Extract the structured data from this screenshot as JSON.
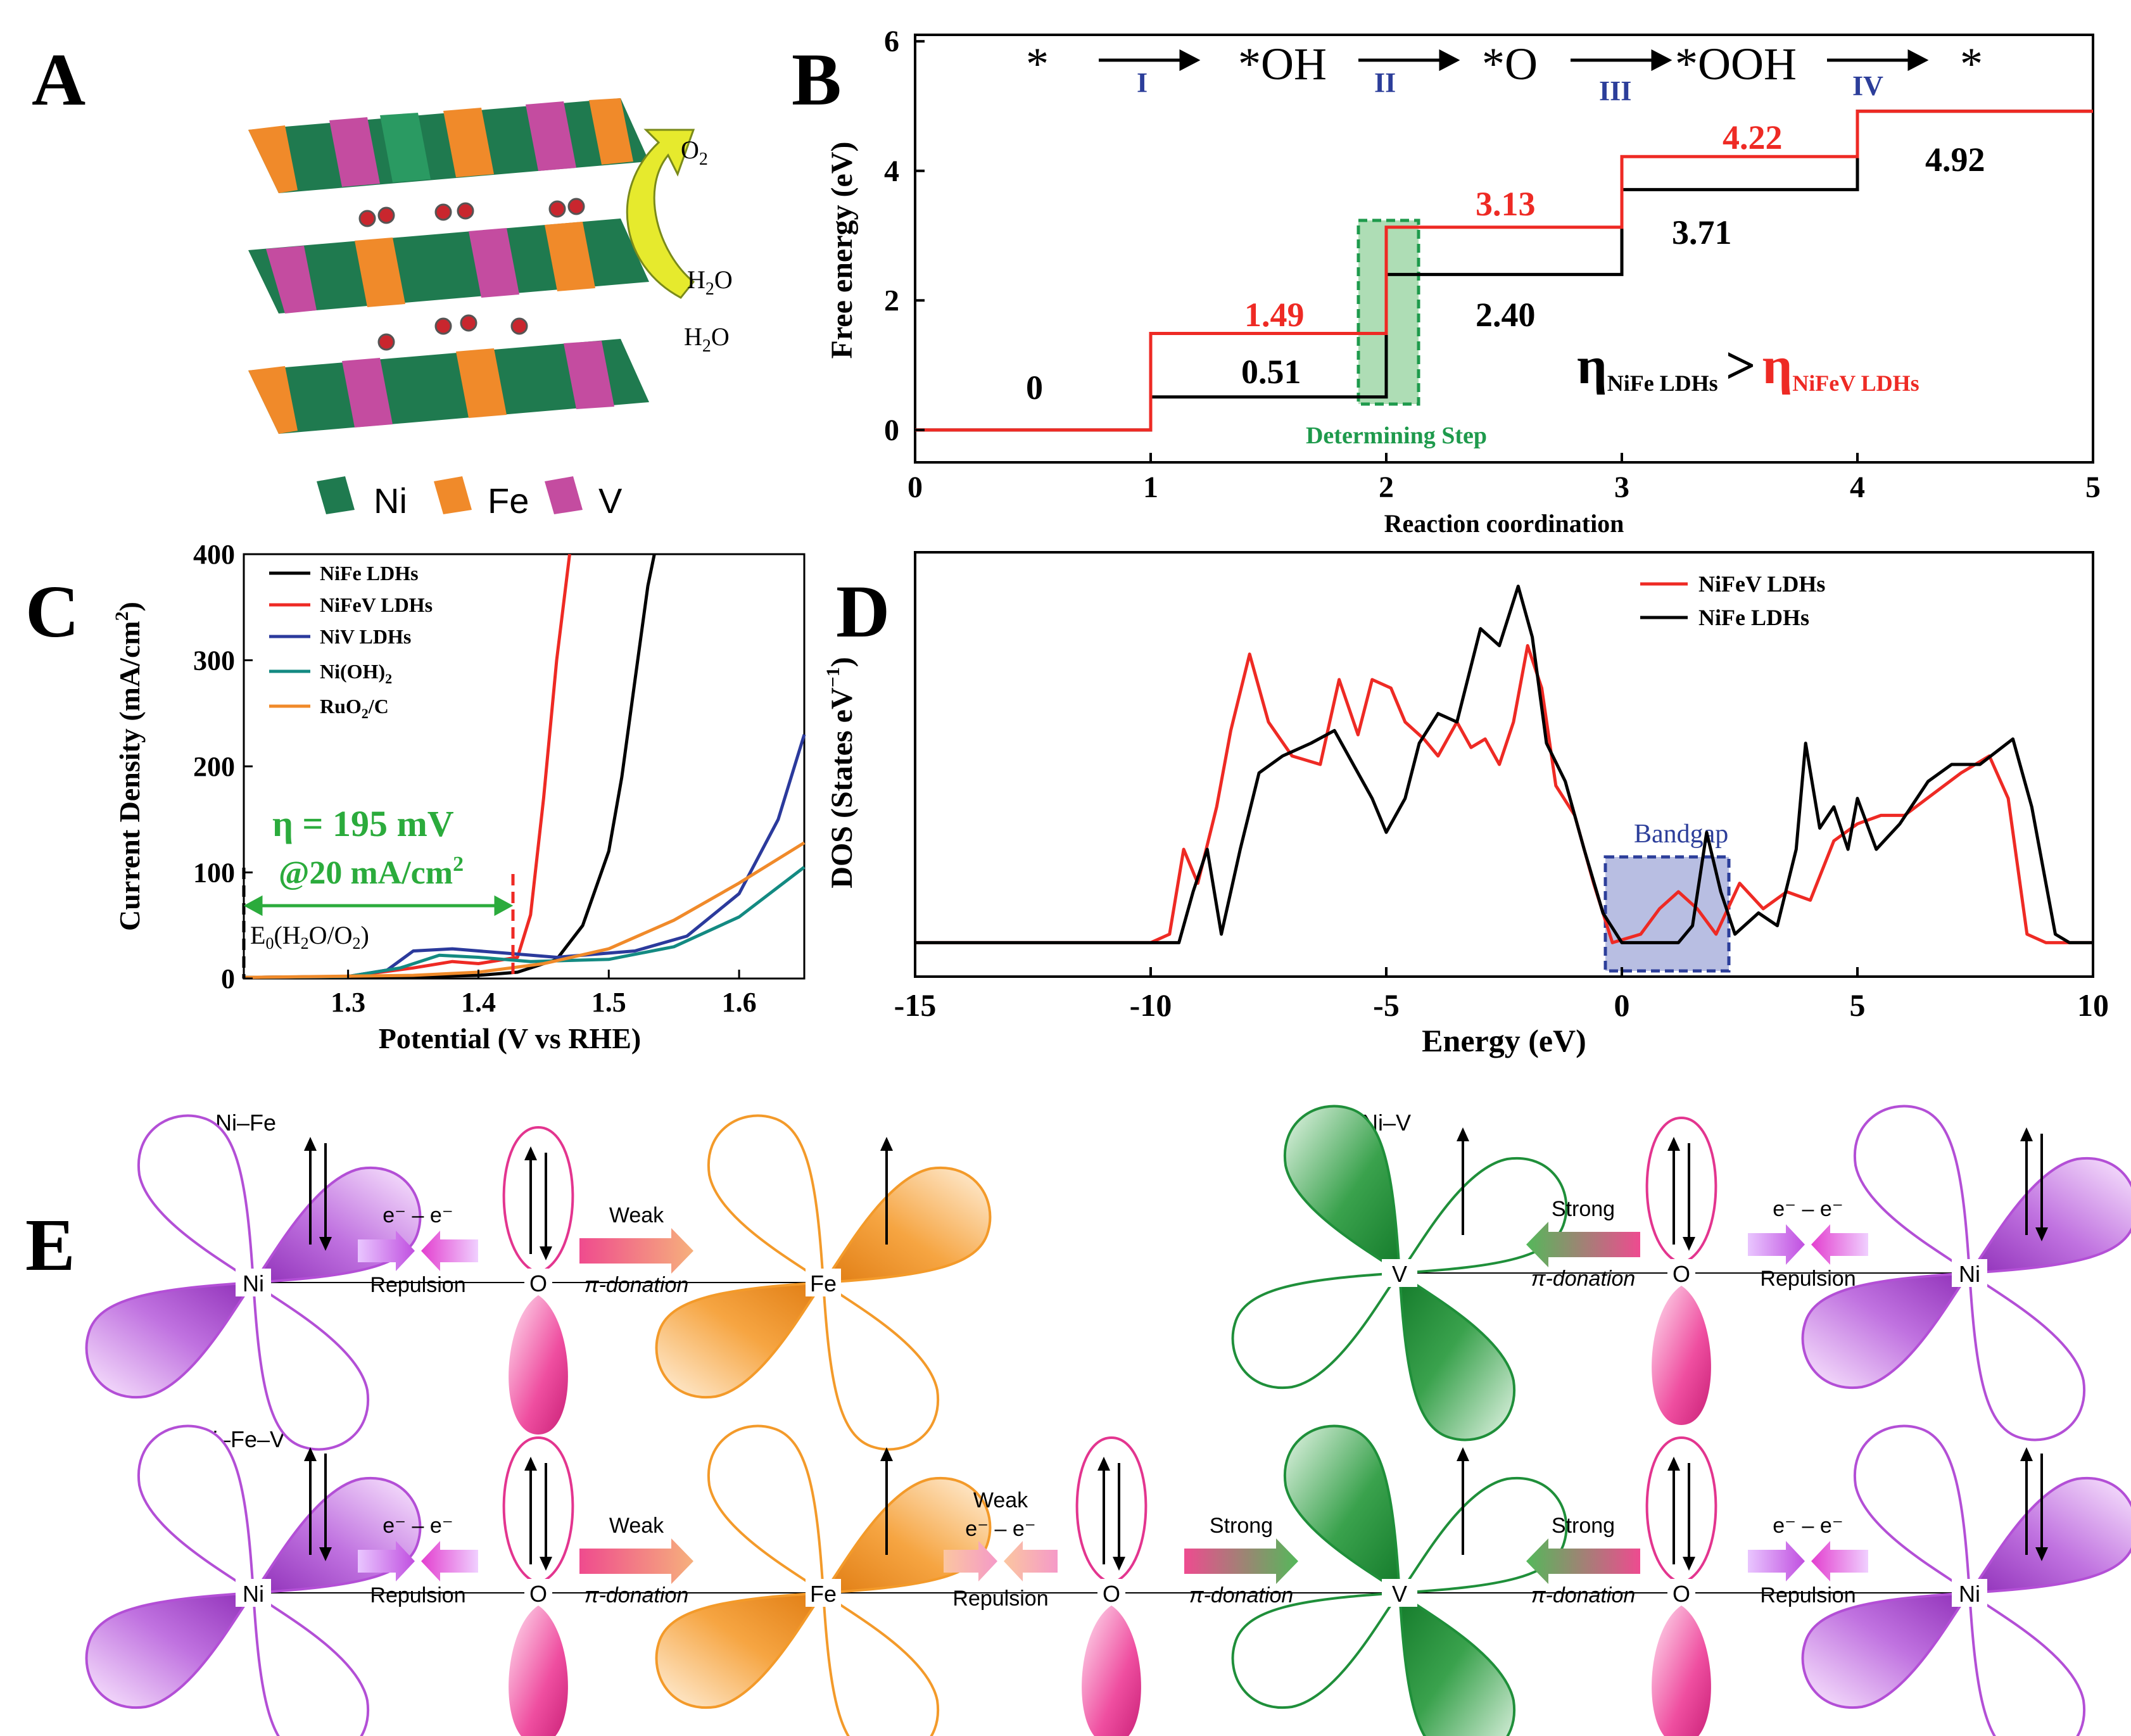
{
  "panel_labels": {
    "a": "A",
    "b": "B",
    "c": "C",
    "d": "D",
    "e": "E"
  },
  "panelA": {
    "o2": "O",
    "o2_sub": "2",
    "h2o_1": "H",
    "h2o_1_sub": "2",
    "h2o_1_tail": "O",
    "h2o_2": "H",
    "h2o_2_sub": "2",
    "h2o_2_tail": "O",
    "legend": [
      "Ni",
      "Fe",
      "V"
    ],
    "colors": {
      "ni": "#1f7a4f",
      "fe": "#f08a2a",
      "v": "#c44ca0"
    }
  },
  "chart_data": [
    {
      "id": "B",
      "type": "line",
      "xlabel": "Reaction coordination",
      "ylabel": "Free energy (eV)",
      "xlim": [
        0,
        5
      ],
      "ylim": [
        -0.5,
        6.1
      ],
      "xticks": [
        "0",
        "1",
        "2",
        "3",
        "4",
        "5"
      ],
      "yticks": [
        "0",
        "2",
        "4",
        "6"
      ],
      "series": [
        {
          "color": "#000000",
          "steps": [
            0,
            0.51,
            2.4,
            3.71,
            4.92
          ]
        },
        {
          "color": "#ee2a24",
          "steps": [
            0,
            1.49,
            3.13,
            4.22,
            4.92
          ]
        }
      ],
      "labels_black": [
        "0",
        "0.51",
        "2.40",
        "3.71",
        "4.92"
      ],
      "labels_red": [
        "1.49",
        "3.13",
        "4.22"
      ],
      "scheme": {
        "species": [
          "*",
          "*OH",
          "*O",
          "*OOH",
          "*"
        ],
        "steps": [
          "I",
          "II",
          "III",
          "IV"
        ]
      },
      "determining_step": "Determining Step",
      "eta": {
        "symbol": "η",
        "left_sub": "NiFe LDHs",
        "gt": ">",
        "right_sub": "NiFeV LDHs"
      }
    },
    {
      "id": "C",
      "type": "line",
      "xlabel": "Potential (V vs RHE)",
      "ylabel": "Current Density (mA/cm²)",
      "xlim": [
        1.22,
        1.65
      ],
      "ylim": [
        0,
        400
      ],
      "xticks": [
        "1.3",
        "1.4",
        "1.5",
        "1.6"
      ],
      "yticks": [
        "0",
        "100",
        "200",
        "300",
        "400"
      ],
      "series": [
        {
          "name": "NiFe LDHs",
          "color": "#000000",
          "points": [
            [
              1.22,
              1
            ],
            [
              1.3,
              1
            ],
            [
              1.36,
              2
            ],
            [
              1.4,
              3
            ],
            [
              1.43,
              6
            ],
            [
              1.46,
              18
            ],
            [
              1.48,
              50
            ],
            [
              1.5,
              120
            ],
            [
              1.51,
              190
            ],
            [
              1.52,
              280
            ],
            [
              1.53,
              370
            ],
            [
              1.535,
              400
            ]
          ]
        },
        {
          "name": "NiFeV LDHs",
          "color": "#ee2a24",
          "points": [
            [
              1.22,
              1
            ],
            [
              1.3,
              2
            ],
            [
              1.35,
              10
            ],
            [
              1.38,
              16
            ],
            [
              1.4,
              14
            ],
            [
              1.43,
              20
            ],
            [
              1.44,
              60
            ],
            [
              1.45,
              170
            ],
            [
              1.46,
              300
            ],
            [
              1.47,
              400
            ]
          ]
        },
        {
          "name": "NiV LDHs",
          "color": "#2b3a9c",
          "points": [
            [
              1.22,
              1
            ],
            [
              1.3,
              2
            ],
            [
              1.33,
              8
            ],
            [
              1.35,
              26
            ],
            [
              1.38,
              28
            ],
            [
              1.42,
              24
            ],
            [
              1.46,
              20
            ],
            [
              1.52,
              26
            ],
            [
              1.56,
              40
            ],
            [
              1.6,
              80
            ],
            [
              1.63,
              150
            ],
            [
              1.65,
              230
            ]
          ]
        },
        {
          "name": "Ni(OH)₂",
          "color": "#138a82",
          "points": [
            [
              1.22,
              1
            ],
            [
              1.3,
              2
            ],
            [
              1.34,
              10
            ],
            [
              1.37,
              22
            ],
            [
              1.4,
              20
            ],
            [
              1.44,
              16
            ],
            [
              1.5,
              18
            ],
            [
              1.55,
              30
            ],
            [
              1.6,
              58
            ],
            [
              1.65,
              105
            ]
          ]
        },
        {
          "name": "RuO₂/C",
          "color": "#f08a2a",
          "points": [
            [
              1.22,
              1
            ],
            [
              1.35,
              3
            ],
            [
              1.4,
              6
            ],
            [
              1.45,
              14
            ],
            [
              1.5,
              28
            ],
            [
              1.55,
              55
            ],
            [
              1.6,
              90
            ],
            [
              1.65,
              128
            ]
          ]
        }
      ],
      "legend_labels": [
        "NiFe LDHs",
        "NiFeV LDHs",
        "NiV LDHs",
        "Ni(OH)",
        "RuO",
        "/C"
      ],
      "legend_subs": [
        "2",
        "2"
      ],
      "annot_eta": "η = 195 mV",
      "annot_at": "@20 mA/cm",
      "annot_at_sup": "2",
      "annot_e0": "E",
      "annot_e0_sub": "0",
      "annot_e0_tail": "(H",
      "annot_e0_sub2": "2",
      "annot_e0_tail2": "O/O",
      "annot_e0_sub3": "2",
      "annot_e0_close": ")"
    },
    {
      "id": "D",
      "type": "line",
      "xlabel": "Energy (eV)",
      "ylabel": "DOS (States eV⁻¹)",
      "xlim": [
        -15,
        10
      ],
      "ylim": [
        0,
        1
      ],
      "xticks": [
        "-15",
        "-10",
        "-5",
        "0",
        "5",
        "10"
      ],
      "series": [
        {
          "name": "NiFeV LDHs",
          "color": "#ee2a24",
          "points": [
            [
              -15,
              0.08
            ],
            [
              -10,
              0.08
            ],
            [
              -9.6,
              0.1
            ],
            [
              -9.3,
              0.3
            ],
            [
              -9.0,
              0.22
            ],
            [
              -8.6,
              0.4
            ],
            [
              -8.3,
              0.58
            ],
            [
              -7.9,
              0.76
            ],
            [
              -7.5,
              0.6
            ],
            [
              -7.0,
              0.52
            ],
            [
              -6.4,
              0.5
            ],
            [
              -6.0,
              0.7
            ],
            [
              -5.6,
              0.57
            ],
            [
              -5.3,
              0.7
            ],
            [
              -4.9,
              0.68
            ],
            [
              -4.6,
              0.6
            ],
            [
              -4.2,
              0.56
            ],
            [
              -3.9,
              0.52
            ],
            [
              -3.5,
              0.6
            ],
            [
              -3.2,
              0.54
            ],
            [
              -2.9,
              0.56
            ],
            [
              -2.6,
              0.5
            ],
            [
              -2.3,
              0.6
            ],
            [
              -2.0,
              0.78
            ],
            [
              -1.7,
              0.68
            ],
            [
              -1.4,
              0.45
            ],
            [
              -1.0,
              0.38
            ],
            [
              -0.6,
              0.22
            ],
            [
              -0.2,
              0.08
            ],
            [
              0.4,
              0.1
            ],
            [
              0.8,
              0.16
            ],
            [
              1.2,
              0.2
            ],
            [
              1.6,
              0.16
            ],
            [
              2.0,
              0.1
            ],
            [
              2.5,
              0.22
            ],
            [
              3.0,
              0.16
            ],
            [
              3.5,
              0.2
            ],
            [
              4.0,
              0.18
            ],
            [
              4.5,
              0.32
            ],
            [
              5.0,
              0.36
            ],
            [
              5.5,
              0.38
            ],
            [
              6.0,
              0.38
            ],
            [
              6.6,
              0.43
            ],
            [
              7.2,
              0.48
            ],
            [
              7.8,
              0.52
            ],
            [
              8.2,
              0.42
            ],
            [
              8.6,
              0.1
            ],
            [
              9.0,
              0.08
            ],
            [
              10,
              0.08
            ]
          ]
        },
        {
          "name": "NiFe LDHs",
          "color": "#000000",
          "points": [
            [
              -15,
              0.08
            ],
            [
              -9.4,
              0.08
            ],
            [
              -9.1,
              0.2
            ],
            [
              -8.8,
              0.3
            ],
            [
              -8.5,
              0.1
            ],
            [
              -8.1,
              0.3
            ],
            [
              -7.7,
              0.48
            ],
            [
              -7.2,
              0.52
            ],
            [
              -6.6,
              0.55
            ],
            [
              -6.1,
              0.58
            ],
            [
              -5.7,
              0.5
            ],
            [
              -5.3,
              0.42
            ],
            [
              -5.0,
              0.34
            ],
            [
              -4.6,
              0.42
            ],
            [
              -4.3,
              0.55
            ],
            [
              -3.9,
              0.62
            ],
            [
              -3.5,
              0.6
            ],
            [
              -3.0,
              0.82
            ],
            [
              -2.6,
              0.78
            ],
            [
              -2.2,
              0.92
            ],
            [
              -1.9,
              0.8
            ],
            [
              -1.6,
              0.55
            ],
            [
              -1.2,
              0.46
            ],
            [
              -0.8,
              0.3
            ],
            [
              -0.4,
              0.15
            ],
            [
              0,
              0.08
            ],
            [
              1.2,
              0.08
            ],
            [
              1.5,
              0.12
            ],
            [
              1.8,
              0.34
            ],
            [
              2.1,
              0.2
            ],
            [
              2.4,
              0.1
            ],
            [
              2.9,
              0.15
            ],
            [
              3.3,
              0.12
            ],
            [
              3.7,
              0.3
            ],
            [
              3.9,
              0.55
            ],
            [
              4.2,
              0.35
            ],
            [
              4.5,
              0.4
            ],
            [
              4.8,
              0.3
            ],
            [
              5.0,
              0.42
            ],
            [
              5.4,
              0.3
            ],
            [
              5.9,
              0.36
            ],
            [
              6.5,
              0.46
            ],
            [
              7.0,
              0.5
            ],
            [
              7.6,
              0.5
            ],
            [
              8.3,
              0.56
            ],
            [
              8.7,
              0.4
            ],
            [
              9.2,
              0.1
            ],
            [
              9.5,
              0.08
            ],
            [
              10,
              0.08
            ]
          ]
        }
      ],
      "bandgap_label": "Bandgap"
    }
  ],
  "panelE": {
    "top_left_title": "Ni–Fe",
    "top_right_title": "Ni–V",
    "bottom_title": "Ni–Fe–V",
    "atoms": {
      "ni": "Ni",
      "o": "O",
      "fe": "Fe",
      "v": "V"
    },
    "arrows": {
      "ee": "e⁻ – e⁻",
      "repulsion": "Repulsion",
      "weak": "Weak",
      "strong": "Strong",
      "pi": "π-donation"
    },
    "colors": {
      "ni": "#b34fd6",
      "fe": "#f39a2a",
      "v": "#1f8f3a",
      "o": "#e3358f"
    }
  }
}
